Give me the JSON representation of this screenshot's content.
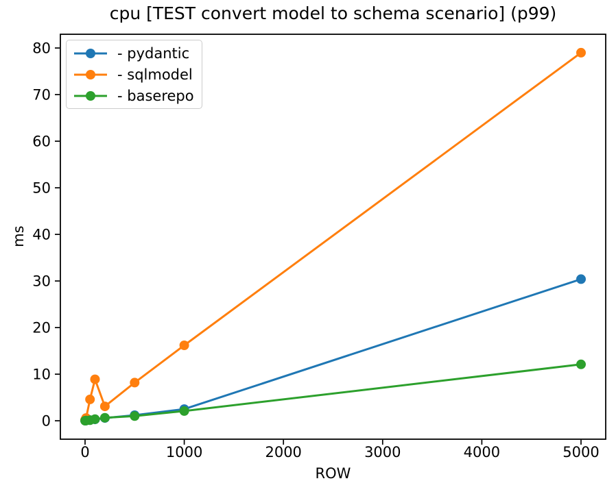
{
  "chart_data": {
    "type": "line",
    "title": "cpu [TEST convert model to schema scenario] (p99)",
    "xlabel": "ROW",
    "ylabel": "ms",
    "x": [
      1,
      10,
      50,
      100,
      200,
      500,
      1000,
      5000
    ],
    "series": [
      {
        "id": "pydantic",
        "name": "- pydantic",
        "color": "#1f77b4",
        "values": [
          0.03,
          0.06,
          0.15,
          0.3,
          0.6,
          1.2,
          2.5,
          30.4
        ]
      },
      {
        "id": "sqlmodel",
        "name": "- sqlmodel",
        "color": "#ff7f0e",
        "values": [
          0.2,
          0.6,
          4.6,
          8.9,
          3.1,
          8.2,
          16.2,
          79.0
        ]
      },
      {
        "id": "baserepo",
        "name": "- baserepo",
        "color": "#2ca02c",
        "values": [
          0.02,
          0.05,
          0.12,
          0.35,
          0.65,
          1.0,
          2.1,
          12.1
        ]
      }
    ],
    "x_ticks": [
      0,
      1000,
      2000,
      3000,
      4000,
      5000
    ],
    "y_ticks": [
      0,
      10,
      20,
      30,
      40,
      50,
      60,
      70,
      80
    ],
    "xlim": [
      -249,
      5249
    ],
    "ylim": [
      -3.95,
      82.95
    ],
    "grid": false,
    "legend_position": "upper left",
    "marker": "o",
    "axis_color": "#000000",
    "plot_background": "#ffffff",
    "legend_border_color": "#cccccc"
  }
}
